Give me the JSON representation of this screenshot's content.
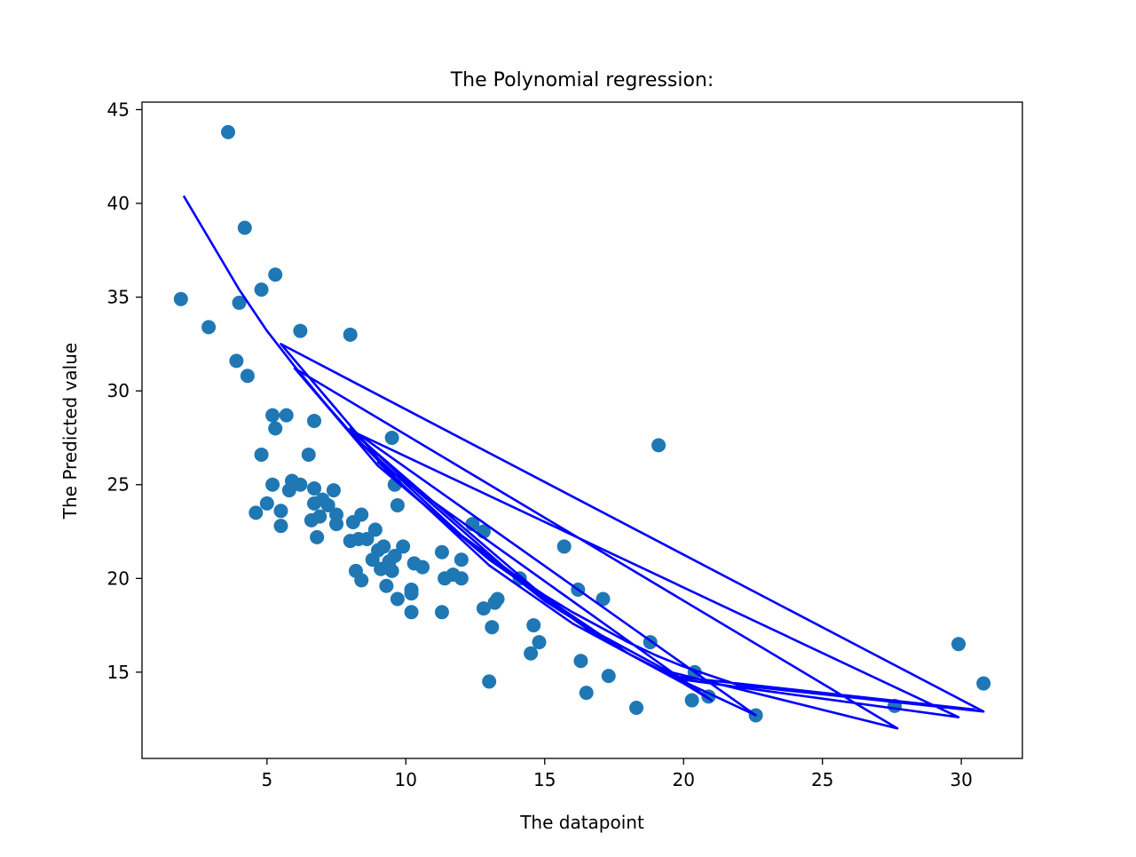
{
  "chart_data": {
    "type": "scatter",
    "title": "The Polynomial regression:",
    "xlabel": "The datapoint",
    "ylabel": "The Predicted value",
    "xlim": [
      0.5,
      32.2
    ],
    "ylim": [
      10.4,
      45.4
    ],
    "xticks": [
      5,
      10,
      15,
      20,
      25,
      30
    ],
    "yticks": [
      15,
      20,
      25,
      30,
      35,
      40,
      45
    ],
    "grid": false,
    "colors": {
      "scatter": "#1f77b4",
      "line": "#0000ff",
      "axes": "#000000"
    },
    "scatter_points": [
      [
        1.9,
        34.9
      ],
      [
        2.9,
        33.4
      ],
      [
        3.6,
        43.8
      ],
      [
        3.9,
        31.6
      ],
      [
        4.0,
        34.7
      ],
      [
        4.2,
        38.7
      ],
      [
        4.3,
        30.8
      ],
      [
        4.6,
        23.5
      ],
      [
        4.8,
        35.4
      ],
      [
        4.8,
        26.6
      ],
      [
        5.0,
        24.0
      ],
      [
        5.2,
        28.7
      ],
      [
        5.2,
        25.0
      ],
      [
        5.3,
        28.0
      ],
      [
        5.3,
        36.2
      ],
      [
        5.5,
        23.6
      ],
      [
        5.5,
        22.8
      ],
      [
        5.7,
        28.7
      ],
      [
        5.8,
        24.7
      ],
      [
        5.9,
        25.2
      ],
      [
        6.2,
        33.2
      ],
      [
        6.2,
        25.0
      ],
      [
        6.5,
        26.6
      ],
      [
        6.6,
        23.1
      ],
      [
        6.7,
        28.4
      ],
      [
        6.7,
        24.8
      ],
      [
        6.7,
        24.0
      ],
      [
        6.8,
        22.2
      ],
      [
        6.9,
        23.3
      ],
      [
        7.0,
        24.2
      ],
      [
        7.2,
        23.9
      ],
      [
        7.4,
        24.7
      ],
      [
        7.5,
        23.4
      ],
      [
        7.5,
        22.9
      ],
      [
        8.0,
        33.0
      ],
      [
        8.0,
        22.0
      ],
      [
        8.1,
        23.0
      ],
      [
        8.2,
        20.4
      ],
      [
        8.3,
        22.1
      ],
      [
        8.4,
        23.4
      ],
      [
        8.4,
        19.9
      ],
      [
        8.6,
        22.1
      ],
      [
        8.8,
        21.0
      ],
      [
        8.9,
        22.6
      ],
      [
        9.0,
        21.5
      ],
      [
        9.1,
        20.5
      ],
      [
        9.2,
        21.7
      ],
      [
        9.3,
        19.6
      ],
      [
        9.4,
        20.9
      ],
      [
        9.5,
        27.5
      ],
      [
        9.5,
        20.4
      ],
      [
        9.6,
        25.0
      ],
      [
        9.6,
        21.2
      ],
      [
        9.7,
        23.9
      ],
      [
        9.7,
        18.9
      ],
      [
        9.9,
        21.7
      ],
      [
        10.2,
        19.2
      ],
      [
        10.2,
        19.4
      ],
      [
        10.2,
        18.2
      ],
      [
        10.3,
        20.8
      ],
      [
        10.6,
        20.6
      ],
      [
        11.3,
        21.4
      ],
      [
        11.3,
        18.2
      ],
      [
        11.4,
        20.0
      ],
      [
        11.7,
        20.2
      ],
      [
        12.0,
        21.0
      ],
      [
        12.0,
        20.0
      ],
      [
        12.4,
        22.9
      ],
      [
        12.8,
        22.5
      ],
      [
        12.8,
        18.4
      ],
      [
        13.0,
        14.5
      ],
      [
        13.1,
        17.4
      ],
      [
        13.2,
        18.7
      ],
      [
        13.3,
        18.9
      ],
      [
        14.1,
        20.0
      ],
      [
        14.5,
        16.0
      ],
      [
        14.6,
        17.5
      ],
      [
        14.8,
        16.6
      ],
      [
        15.7,
        21.7
      ],
      [
        16.2,
        19.4
      ],
      [
        16.3,
        15.6
      ],
      [
        16.5,
        13.9
      ],
      [
        17.1,
        18.9
      ],
      [
        17.3,
        14.8
      ],
      [
        18.3,
        13.1
      ],
      [
        18.8,
        16.6
      ],
      [
        19.1,
        27.1
      ],
      [
        20.3,
        13.5
      ],
      [
        20.4,
        15.0
      ],
      [
        20.9,
        13.7
      ],
      [
        22.6,
        12.7
      ],
      [
        27.6,
        13.2
      ],
      [
        29.9,
        16.5
      ],
      [
        30.8,
        14.4
      ]
    ],
    "fit_line": [
      [
        2.0,
        40.4
      ],
      [
        4.0,
        35.4
      ],
      [
        5.0,
        33.2
      ],
      [
        6.0,
        31.3
      ],
      [
        7.0,
        29.5
      ],
      [
        8.0,
        27.8
      ],
      [
        9.0,
        26.3
      ],
      [
        10.0,
        24.8
      ],
      [
        11.0,
        23.5
      ],
      [
        12.0,
        22.3
      ],
      [
        13.0,
        21.2
      ],
      [
        14.0,
        20.1
      ],
      [
        15.0,
        19.1
      ],
      [
        16.0,
        18.2
      ],
      [
        17.0,
        17.4
      ],
      [
        18.0,
        16.6
      ],
      [
        19.0,
        15.9
      ],
      [
        20.0,
        15.3
      ],
      [
        21.0,
        14.8
      ],
      [
        22.0,
        14.3
      ],
      [
        30.8,
        12.9
      ],
      [
        5.5,
        32.5
      ],
      [
        9.0,
        26.4
      ],
      [
        12.0,
        22.3
      ],
      [
        15.0,
        18.8
      ],
      [
        18.0,
        16.0
      ],
      [
        20.0,
        14.5
      ],
      [
        22.6,
        12.7
      ],
      [
        8.0,
        28.0
      ],
      [
        10.0,
        25.2
      ],
      [
        14.0,
        20.0
      ],
      [
        17.0,
        16.8
      ],
      [
        19.0,
        15.2
      ],
      [
        27.7,
        12.0
      ],
      [
        6.0,
        31.2
      ],
      [
        9.0,
        26.0
      ],
      [
        13.0,
        21.0
      ],
      [
        16.5,
        17.4
      ],
      [
        20.0,
        14.6
      ],
      [
        29.9,
        12.6
      ],
      [
        8.0,
        27.9
      ],
      [
        12.0,
        22.8
      ],
      [
        15.0,
        19.0
      ],
      [
        18.0,
        16.0
      ],
      [
        20.0,
        14.4
      ],
      [
        21.0,
        13.5
      ],
      [
        9.0,
        26.2
      ],
      [
        13.0,
        20.7
      ],
      [
        16.0,
        17.6
      ],
      [
        19.5,
        14.8
      ],
      [
        30.5,
        13.0
      ]
    ]
  }
}
